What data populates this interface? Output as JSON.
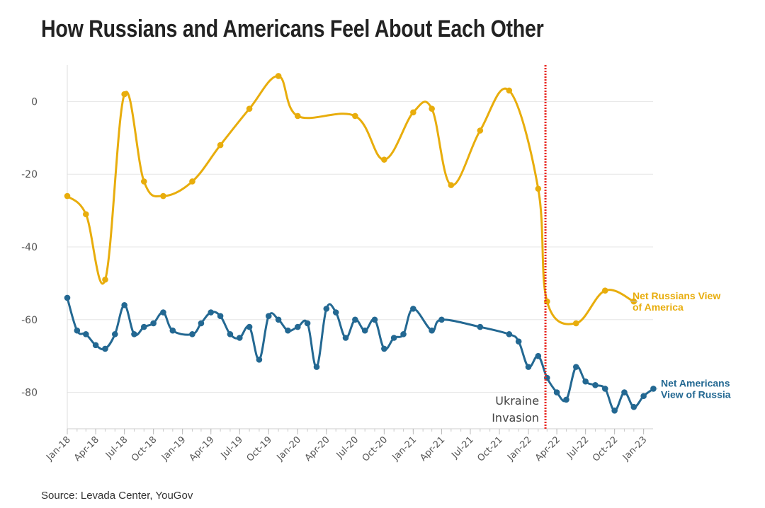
{
  "chart_data": {
    "type": "line",
    "title": "How Russians and Americans Feel About Each Other",
    "source": "Source: Levada Center, YouGov",
    "y_ticks": [
      0,
      -20,
      -40,
      -60,
      -80
    ],
    "ylim": [
      -90,
      10
    ],
    "x_ticks": [
      "Jan-18",
      "Apr-18",
      "Jul-18",
      "Oct-18",
      "Jan-19",
      "Apr-19",
      "Jul-19",
      "Oct-19",
      "Jan-20",
      "Apr-20",
      "Jul-20",
      "Oct-20",
      "Jan-21",
      "Apr-21",
      "Jul-21",
      "Oct-21",
      "Jan-22",
      "Apr-22",
      "Jul-22",
      "Oct-22",
      "Jan-23"
    ],
    "xlim": [
      "2018-01-01",
      "2023-01-31"
    ],
    "grid": true,
    "annotation": {
      "label_line1": "Ukraine",
      "label_line2": "Invasion",
      "date": "2022-02-24",
      "color": "#e8251f"
    },
    "series": [
      {
        "name_line1": "Net Russians View",
        "name_line2": "of America",
        "color": "#e8ad0c",
        "points": [
          [
            "2018-01",
            -26
          ],
          [
            "2018-03",
            -31
          ],
          [
            "2018-05",
            -49
          ],
          [
            "2018-07",
            2
          ],
          [
            "2018-09",
            -22
          ],
          [
            "2018-11",
            -26
          ],
          [
            "2019-02",
            -22
          ],
          [
            "2019-05",
            -12
          ],
          [
            "2019-08",
            -2
          ],
          [
            "2019-11",
            7
          ],
          [
            "2020-01",
            -4
          ],
          [
            "2020-07",
            -4
          ],
          [
            "2020-10",
            -16
          ],
          [
            "2021-01",
            -3
          ],
          [
            "2021-03",
            -2
          ],
          [
            "2021-05",
            -23
          ],
          [
            "2021-08",
            -8
          ],
          [
            "2021-11",
            3
          ],
          [
            "2022-02",
            -24
          ],
          [
            "2022-03",
            -55
          ],
          [
            "2022-06",
            -61
          ],
          [
            "2022-09",
            -52
          ],
          [
            "2022-12",
            -55
          ]
        ]
      },
      {
        "name_line1": "Net Americans",
        "name_line2": "View of Russia",
        "color": "#236892",
        "points": [
          [
            "2018-01",
            -54
          ],
          [
            "2018-02",
            -63
          ],
          [
            "2018-03",
            -64
          ],
          [
            "2018-04",
            -67
          ],
          [
            "2018-05",
            -68
          ],
          [
            "2018-06",
            -64
          ],
          [
            "2018-07",
            -56
          ],
          [
            "2018-08",
            -64
          ],
          [
            "2018-09",
            -62
          ],
          [
            "2018-10",
            -61
          ],
          [
            "2018-11",
            -58
          ],
          [
            "2018-12",
            -63
          ],
          [
            "2019-02",
            -64
          ],
          [
            "2019-03",
            -61
          ],
          [
            "2019-04",
            -58
          ],
          [
            "2019-05",
            -59
          ],
          [
            "2019-06",
            -64
          ],
          [
            "2019-07",
            -65
          ],
          [
            "2019-08",
            -62
          ],
          [
            "2019-09",
            -71
          ],
          [
            "2019-10",
            -59
          ],
          [
            "2019-11",
            -60
          ],
          [
            "2019-12",
            -63
          ],
          [
            "2020-01",
            -62
          ],
          [
            "2020-02",
            -61
          ],
          [
            "2020-03",
            -73
          ],
          [
            "2020-04",
            -57
          ],
          [
            "2020-05",
            -58
          ],
          [
            "2020-06",
            -65
          ],
          [
            "2020-07",
            -60
          ],
          [
            "2020-08",
            -63
          ],
          [
            "2020-09",
            -60
          ],
          [
            "2020-10",
            -68
          ],
          [
            "2020-11",
            -65
          ],
          [
            "2020-12",
            -64
          ],
          [
            "2021-01",
            -57
          ],
          [
            "2021-03",
            -63
          ],
          [
            "2021-04",
            -60
          ],
          [
            "2021-08",
            -62
          ],
          [
            "2021-11",
            -64
          ],
          [
            "2021-12",
            -66
          ],
          [
            "2022-01",
            -73
          ],
          [
            "2022-02",
            -70
          ],
          [
            "2022-03",
            -76
          ],
          [
            "2022-04",
            -80
          ],
          [
            "2022-05",
            -82
          ],
          [
            "2022-06",
            -73
          ],
          [
            "2022-07",
            -77
          ],
          [
            "2022-08",
            -78
          ],
          [
            "2022-09",
            -79
          ],
          [
            "2022-10",
            -85
          ],
          [
            "2022-11",
            -80
          ],
          [
            "2022-12",
            -84
          ],
          [
            "2023-01",
            -81
          ],
          [
            "2023-02",
            -79
          ]
        ]
      }
    ]
  }
}
